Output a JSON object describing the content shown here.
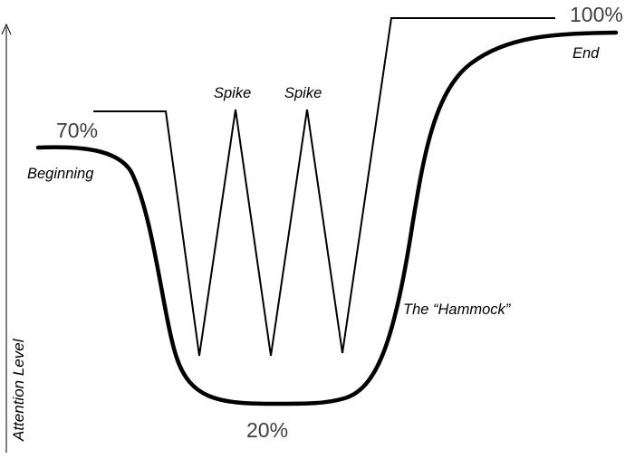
{
  "axis": {
    "y_label": "Attention Level"
  },
  "levels": {
    "start": "70%",
    "low": "20%",
    "end": "100%"
  },
  "labels": {
    "beginning": "Beginning",
    "end": "End",
    "spike_1": "Spike",
    "spike_2": "Spike",
    "hammock": "The “Hammock”"
  },
  "colors": {
    "stroke": "#000000",
    "percent_text": "#404040"
  }
}
